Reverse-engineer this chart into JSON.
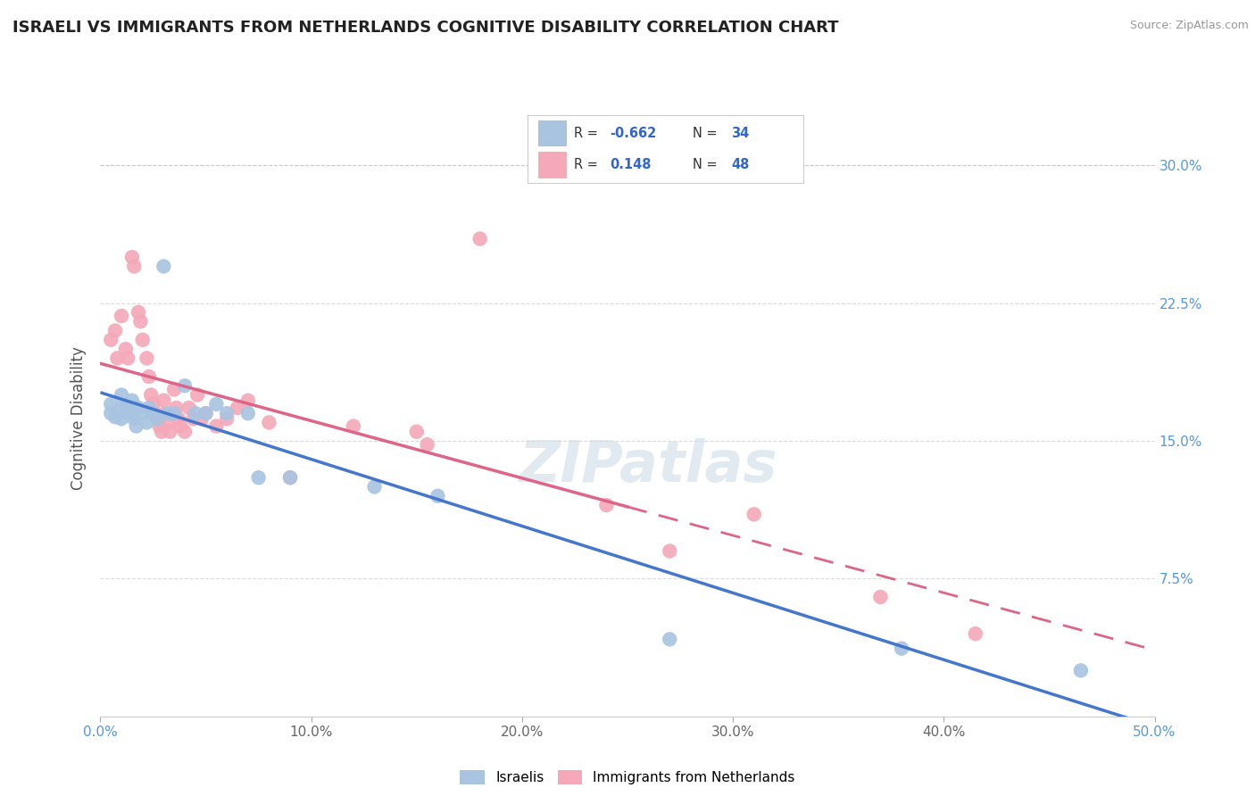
{
  "title": "ISRAELI VS IMMIGRANTS FROM NETHERLANDS COGNITIVE DISABILITY CORRELATION CHART",
  "source": "Source: ZipAtlas.com",
  "ylabel": "Cognitive Disability",
  "xlim": [
    0.0,
    0.5
  ],
  "ylim": [
    0.0,
    0.325
  ],
  "background_color": "#ffffff",
  "grid_color": "#cccccc",
  "israeli_color": "#a8c4e0",
  "netherlands_color": "#f4a8b8",
  "israeli_line_color": "#4477cc",
  "netherlands_line_color": "#dd6688",
  "R_israeli": -0.662,
  "N_israeli": 34,
  "R_netherlands": 0.148,
  "N_netherlands": 48,
  "israeli_points": [
    [
      0.005,
      0.17
    ],
    [
      0.005,
      0.165
    ],
    [
      0.007,
      0.163
    ],
    [
      0.01,
      0.175
    ],
    [
      0.01,
      0.168
    ],
    [
      0.01,
      0.162
    ],
    [
      0.012,
      0.168
    ],
    [
      0.013,
      0.165
    ],
    [
      0.015,
      0.172
    ],
    [
      0.015,
      0.165
    ],
    [
      0.016,
      0.162
    ],
    [
      0.017,
      0.158
    ],
    [
      0.018,
      0.168
    ],
    [
      0.02,
      0.165
    ],
    [
      0.022,
      0.16
    ],
    [
      0.023,
      0.168
    ],
    [
      0.025,
      0.165
    ],
    [
      0.027,
      0.162
    ],
    [
      0.03,
      0.245
    ],
    [
      0.032,
      0.165
    ],
    [
      0.035,
      0.165
    ],
    [
      0.04,
      0.18
    ],
    [
      0.045,
      0.165
    ],
    [
      0.05,
      0.165
    ],
    [
      0.055,
      0.17
    ],
    [
      0.06,
      0.165
    ],
    [
      0.07,
      0.165
    ],
    [
      0.075,
      0.13
    ],
    [
      0.09,
      0.13
    ],
    [
      0.13,
      0.125
    ],
    [
      0.16,
      0.12
    ],
    [
      0.27,
      0.042
    ],
    [
      0.38,
      0.037
    ],
    [
      0.465,
      0.025
    ]
  ],
  "netherlands_points": [
    [
      0.005,
      0.205
    ],
    [
      0.007,
      0.21
    ],
    [
      0.008,
      0.195
    ],
    [
      0.01,
      0.218
    ],
    [
      0.012,
      0.2
    ],
    [
      0.013,
      0.195
    ],
    [
      0.015,
      0.25
    ],
    [
      0.016,
      0.245
    ],
    [
      0.018,
      0.22
    ],
    [
      0.019,
      0.215
    ],
    [
      0.02,
      0.205
    ],
    [
      0.022,
      0.195
    ],
    [
      0.023,
      0.185
    ],
    [
      0.024,
      0.175
    ],
    [
      0.025,
      0.17
    ],
    [
      0.026,
      0.165
    ],
    [
      0.027,
      0.162
    ],
    [
      0.028,
      0.158
    ],
    [
      0.029,
      0.155
    ],
    [
      0.03,
      0.172
    ],
    [
      0.031,
      0.165
    ],
    [
      0.032,
      0.16
    ],
    [
      0.033,
      0.155
    ],
    [
      0.035,
      0.178
    ],
    [
      0.036,
      0.168
    ],
    [
      0.037,
      0.162
    ],
    [
      0.038,
      0.158
    ],
    [
      0.04,
      0.155
    ],
    [
      0.042,
      0.168
    ],
    [
      0.044,
      0.162
    ],
    [
      0.046,
      0.175
    ],
    [
      0.048,
      0.162
    ],
    [
      0.05,
      0.165
    ],
    [
      0.055,
      0.158
    ],
    [
      0.06,
      0.162
    ],
    [
      0.065,
      0.168
    ],
    [
      0.07,
      0.172
    ],
    [
      0.08,
      0.16
    ],
    [
      0.09,
      0.13
    ],
    [
      0.12,
      0.158
    ],
    [
      0.15,
      0.155
    ],
    [
      0.155,
      0.148
    ],
    [
      0.18,
      0.26
    ],
    [
      0.24,
      0.115
    ],
    [
      0.27,
      0.09
    ],
    [
      0.31,
      0.11
    ],
    [
      0.37,
      0.065
    ],
    [
      0.415,
      0.045
    ]
  ],
  "watermark_text": "ZIPatlas",
  "legend_label_israeli": "Israelis",
  "legend_label_netherlands": "Immigrants from Netherlands"
}
